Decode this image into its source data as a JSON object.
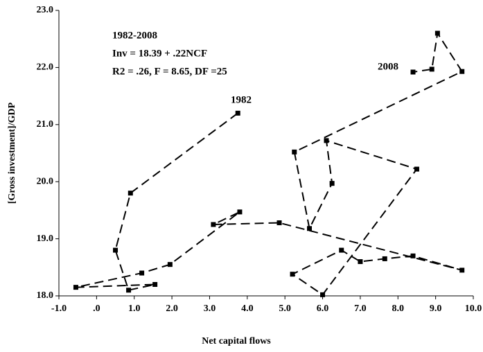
{
  "chart_data": {
    "type": "line",
    "xlabel": "Net capital flows",
    "ylabel": "[Gross investment]/GDP",
    "annotations": [
      "1982-2008",
      "Inv = 18.39 + .22NCF",
      "R2 = .26, F = 8.65, DF =25",
      "1982",
      "2008"
    ],
    "x": [
      3.75,
      0.9,
      0.5,
      0.85,
      1.55,
      -0.55,
      1.2,
      1.95,
      3.8,
      3.1,
      4.85,
      9.7,
      8.4,
      7.65,
      7.0,
      6.5,
      5.2,
      6.0,
      8.5,
      6.1,
      6.25,
      5.65,
      5.25,
      9.7,
      9.05,
      8.9,
      8.4
    ],
    "series": [
      {
        "color": "#000000",
        "values": [
          21.2,
          19.8,
          18.8,
          18.1,
          18.2,
          18.15,
          18.4,
          18.55,
          19.47,
          19.25,
          19.28,
          18.45,
          18.7,
          18.65,
          18.6,
          18.8,
          18.38,
          18.02,
          20.22,
          20.72,
          19.97,
          19.18,
          20.52,
          21.93,
          22.6,
          21.97,
          21.92
        ]
      }
    ],
    "xlim": [
      -1.0,
      10.0
    ],
    "xticks": [
      {
        "value": -1.0,
        "label": "-1.0"
      },
      {
        "value": 0,
        "label": ".0"
      },
      {
        "value": 1.0,
        "label": "1.0"
      },
      {
        "value": 2.0,
        "label": "2.0"
      },
      {
        "value": 3.0,
        "label": "3.0"
      },
      {
        "value": 4.0,
        "label": "4.0"
      },
      {
        "value": 5.0,
        "label": "5.0"
      },
      {
        "value": 6.0,
        "label": "6.0"
      },
      {
        "value": 7.0,
        "label": "7.0"
      },
      {
        "value": 8.0,
        "label": "8.0"
      },
      {
        "value": 9.0,
        "label": "9.0"
      },
      {
        "value": 10.0,
        "label": "10.0"
      }
    ],
    "ylim": [
      18.0,
      23.0
    ],
    "yticks": [
      {
        "value": 18.0,
        "label": "18.0"
      },
      {
        "value": 19.0,
        "label": "19.0"
      },
      {
        "value": 20.0,
        "label": "20.0"
      },
      {
        "value": 21.0,
        "label": "21.0"
      },
      {
        "value": 22.0,
        "label": "22.0"
      },
      {
        "value": 23.0,
        "label": "23.0"
      }
    ],
    "grid": false
  }
}
